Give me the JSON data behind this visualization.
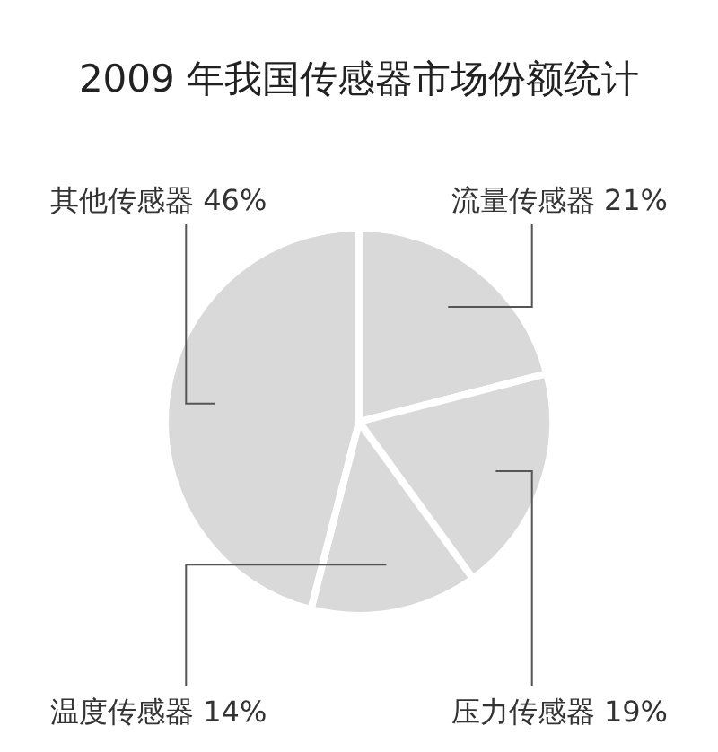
{
  "chart_data": {
    "type": "pie",
    "title": "2009 年我国传感器市场份额统计",
    "categories": [
      "流量传感器",
      "压力传感器",
      "温度传感器",
      "其他传感器"
    ],
    "values": [
      21,
      19,
      14,
      46
    ],
    "colors": [
      "#d9d9d9",
      "#d9d9d9",
      "#d9d9d9",
      "#d9d9d9"
    ],
    "value_labels": [
      "21%",
      "19%",
      "14%",
      "46%"
    ]
  }
}
